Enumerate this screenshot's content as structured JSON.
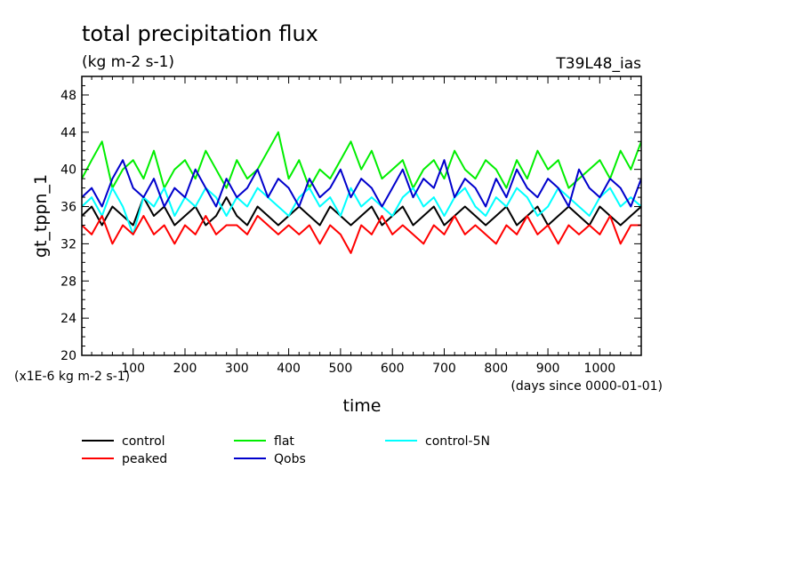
{
  "chart_data": {
    "type": "line",
    "title": "total precipitation flux",
    "units": "(kg m-2 s-1)",
    "experiment": "T39L48_ias",
    "ylabel": "gt_tppn_1",
    "xlabel": "time",
    "y_scale_note": "(x1E-6 kg m-2 s-1)",
    "x_units_note": "(days since 0000-01-01)",
    "xlim": [
      1,
      1080
    ],
    "ylim": [
      20,
      50
    ],
    "x_ticks": [
      100,
      200,
      300,
      400,
      500,
      600,
      700,
      800,
      900,
      1000
    ],
    "x_tick_labels": [
      "100",
      "200",
      "300",
      "400",
      "500",
      "600",
      "700",
      "800",
      "900",
      "1000"
    ],
    "y_ticks": [
      20,
      24,
      28,
      32,
      36,
      40,
      44,
      48
    ],
    "y_tick_labels": [
      "20",
      "24",
      "28",
      "32",
      "36",
      "40",
      "44",
      "48"
    ],
    "legend_placement": "bottom",
    "grid": false,
    "series": [
      {
        "name": "control",
        "color": "#000000",
        "x": [
          1,
          20,
          40,
          60,
          80,
          100,
          120,
          140,
          160,
          180,
          200,
          220,
          240,
          260,
          280,
          300,
          320,
          340,
          360,
          380,
          400,
          420,
          440,
          460,
          480,
          500,
          520,
          540,
          560,
          580,
          600,
          620,
          640,
          660,
          680,
          700,
          720,
          740,
          760,
          780,
          800,
          820,
          840,
          860,
          880,
          900,
          920,
          940,
          960,
          980,
          1000,
          1020,
          1040,
          1060,
          1080
        ],
        "values": [
          35,
          36,
          34,
          36,
          35,
          34,
          37,
          35,
          36,
          34,
          35,
          36,
          34,
          35,
          37,
          35,
          34,
          36,
          35,
          34,
          35,
          36,
          35,
          34,
          36,
          35,
          34,
          35,
          36,
          34,
          35,
          36,
          34,
          35,
          36,
          34,
          35,
          36,
          35,
          34,
          35,
          36,
          34,
          35,
          36,
          34,
          35,
          36,
          35,
          34,
          36,
          35,
          34,
          35,
          36
        ]
      },
      {
        "name": "flat",
        "color": "#00ee00",
        "x": [
          1,
          20,
          40,
          60,
          80,
          100,
          120,
          140,
          160,
          180,
          200,
          220,
          240,
          260,
          280,
          300,
          320,
          340,
          360,
          380,
          400,
          420,
          440,
          460,
          480,
          500,
          520,
          540,
          560,
          580,
          600,
          620,
          640,
          660,
          680,
          700,
          720,
          740,
          760,
          780,
          800,
          820,
          840,
          860,
          880,
          900,
          920,
          940,
          960,
          980,
          1000,
          1020,
          1040,
          1060,
          1080
        ],
        "values": [
          39,
          41,
          43,
          38,
          40,
          41,
          39,
          42,
          38,
          40,
          41,
          39,
          42,
          40,
          38,
          41,
          39,
          40,
          42,
          44,
          39,
          41,
          38,
          40,
          39,
          41,
          43,
          40,
          42,
          39,
          40,
          41,
          38,
          40,
          41,
          39,
          42,
          40,
          39,
          41,
          40,
          38,
          41,
          39,
          42,
          40,
          41,
          38,
          39,
          40,
          41,
          39,
          42,
          40,
          43
        ]
      },
      {
        "name": "control-5N",
        "color": "#00ffff",
        "x": [
          1,
          20,
          40,
          60,
          80,
          100,
          120,
          140,
          160,
          180,
          200,
          220,
          240,
          260,
          280,
          300,
          320,
          340,
          360,
          380,
          400,
          420,
          440,
          460,
          480,
          500,
          520,
          540,
          560,
          580,
          600,
          620,
          640,
          660,
          680,
          700,
          720,
          740,
          760,
          780,
          800,
          820,
          840,
          860,
          880,
          900,
          920,
          940,
          960,
          980,
          1000,
          1020,
          1040,
          1060,
          1080
        ],
        "values": [
          36,
          37,
          35,
          38,
          36,
          33,
          37,
          36,
          38,
          35,
          37,
          36,
          38,
          37,
          35,
          37,
          36,
          38,
          37,
          36,
          35,
          37,
          38,
          36,
          37,
          35,
          38,
          36,
          37,
          36,
          35,
          37,
          38,
          36,
          37,
          35,
          37,
          38,
          36,
          35,
          37,
          36,
          38,
          37,
          35,
          36,
          38,
          37,
          36,
          35,
          37,
          38,
          36,
          37,
          36
        ]
      },
      {
        "name": "peaked",
        "color": "#ff0000",
        "x": [
          1,
          20,
          40,
          60,
          80,
          100,
          120,
          140,
          160,
          180,
          200,
          220,
          240,
          260,
          280,
          300,
          320,
          340,
          360,
          380,
          400,
          420,
          440,
          460,
          480,
          500,
          520,
          540,
          560,
          580,
          600,
          620,
          640,
          660,
          680,
          700,
          720,
          740,
          760,
          780,
          800,
          820,
          840,
          860,
          880,
          900,
          920,
          940,
          960,
          980,
          1000,
          1020,
          1040,
          1060,
          1080
        ],
        "values": [
          34,
          33,
          35,
          32,
          34,
          33,
          35,
          33,
          34,
          32,
          34,
          33,
          35,
          33,
          34,
          34,
          33,
          35,
          34,
          33,
          34,
          33,
          34,
          32,
          34,
          33,
          31,
          34,
          33,
          35,
          33,
          34,
          33,
          32,
          34,
          33,
          35,
          33,
          34,
          33,
          32,
          34,
          33,
          35,
          33,
          34,
          32,
          34,
          33,
          34,
          33,
          35,
          32,
          34,
          34
        ]
      },
      {
        "name": "Qobs",
        "color": "#0000cc",
        "x": [
          1,
          20,
          40,
          60,
          80,
          100,
          120,
          140,
          160,
          180,
          200,
          220,
          240,
          260,
          280,
          300,
          320,
          340,
          360,
          380,
          400,
          420,
          440,
          460,
          480,
          500,
          520,
          540,
          560,
          580,
          600,
          620,
          640,
          660,
          680,
          700,
          720,
          740,
          760,
          780,
          800,
          820,
          840,
          860,
          880,
          900,
          920,
          940,
          960,
          980,
          1000,
          1020,
          1040,
          1060,
          1080
        ],
        "values": [
          37,
          38,
          36,
          39,
          41,
          38,
          37,
          39,
          36,
          38,
          37,
          40,
          38,
          36,
          39,
          37,
          38,
          40,
          37,
          39,
          38,
          36,
          39,
          37,
          38,
          40,
          37,
          39,
          38,
          36,
          38,
          40,
          37,
          39,
          38,
          41,
          37,
          39,
          38,
          36,
          39,
          37,
          40,
          38,
          37,
          39,
          38,
          36,
          40,
          38,
          37,
          39,
          38,
          36,
          39
        ]
      }
    ]
  },
  "legend": {
    "items": [
      {
        "label": "control",
        "color": "#000000"
      },
      {
        "label": "flat",
        "color": "#00ee00"
      },
      {
        "label": "control-5N",
        "color": "#00ffff"
      },
      {
        "label": "peaked",
        "color": "#ff0000"
      },
      {
        "label": "Qobs",
        "color": "#0000cc"
      }
    ]
  }
}
